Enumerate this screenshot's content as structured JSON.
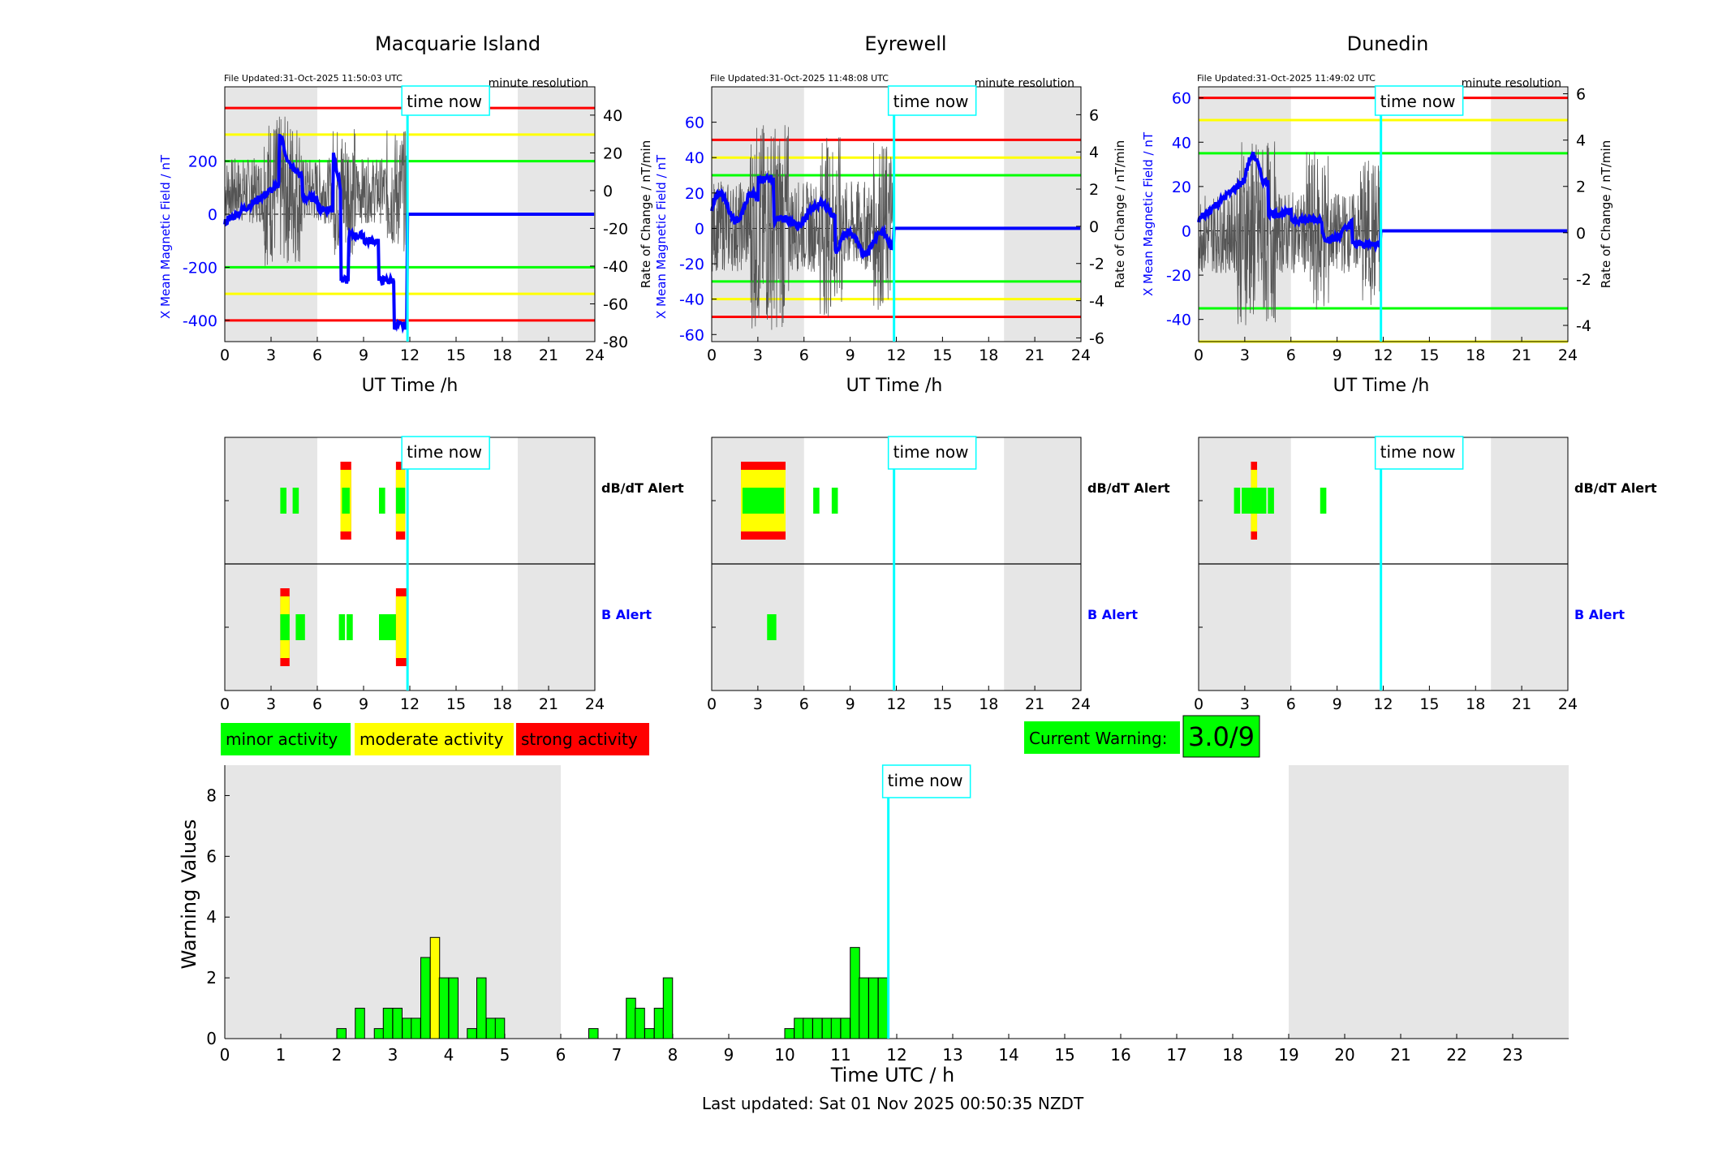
{
  "stations": [
    {
      "name": "Macquarie Island",
      "file_updated": "File Updated:31-Oct-2025 11:50:03 UTC",
      "resolution": "minute resolution",
      "left_ylabel": "X Mean Magnetic Field / nT",
      "right_ylabel": "Rate of Change / nT/min",
      "xlabel": "UT Time /h",
      "left_ticks": [
        -400,
        -200,
        0,
        200
      ],
      "right_ticks": [
        -80,
        -60,
        -40,
        -20,
        0,
        20,
        40
      ],
      "thresholds": {
        "red": 400,
        "yellow": 300,
        "green": 200
      }
    },
    {
      "name": "Eyrewell",
      "file_updated": "File Updated:31-Oct-2025 11:48:08 UTC",
      "resolution": "minute resolution",
      "left_ylabel": "X Mean Magnetic Field / nT",
      "right_ylabel": "Rate of Change / nT/min",
      "xlabel": "UT Time /h",
      "left_ticks": [
        -60,
        -40,
        -20,
        0,
        20,
        40,
        60
      ],
      "right_ticks": [
        -6,
        -4,
        -2,
        0,
        2,
        4,
        6
      ],
      "thresholds": {
        "red": 50,
        "yellow": 40,
        "green": 30
      }
    },
    {
      "name": "Dunedin",
      "file_updated": "File Updated:31-Oct-2025 11:49:02 UTC",
      "resolution": "minute resolution",
      "left_ylabel": "X Mean Magnetic Field / nT",
      "right_ylabel": "Rate of Change / nT/min",
      "xlabel": "UT Time /h",
      "left_ticks": [
        -40,
        -20,
        0,
        20,
        40,
        60
      ],
      "right_ticks": [
        -4,
        -2,
        0,
        2,
        4,
        6
      ],
      "thresholds": {
        "red": 60,
        "yellow": 50,
        "green": 35
      }
    }
  ],
  "time_now_label": "time now",
  "time_now_hours": 11.85,
  "night_shading_hours": [
    [
      0,
      6
    ],
    [
      19,
      24
    ]
  ],
  "x_ticks": [
    0,
    3,
    6,
    9,
    12,
    15,
    18,
    21,
    24
  ],
  "alert_labels": {
    "dbdt": "dB/dT Alert",
    "b": "B Alert"
  },
  "alerts": [
    {
      "dbdt": [
        [
          3.6,
          4.0,
          "g"
        ],
        [
          4.4,
          4.8,
          "g"
        ],
        [
          7.5,
          8.2,
          "o"
        ],
        [
          7.6,
          8.1,
          "g"
        ],
        [
          10.0,
          10.4,
          "g"
        ],
        [
          11.1,
          11.7,
          "o"
        ],
        [
          11.1,
          11.7,
          "g"
        ]
      ],
      "b": [
        [
          3.6,
          4.2,
          "o"
        ],
        [
          3.6,
          4.2,
          "g"
        ],
        [
          4.6,
          5.2,
          "g"
        ],
        [
          7.4,
          7.8,
          "g"
        ],
        [
          7.9,
          8.3,
          "g"
        ],
        [
          10.0,
          11.9,
          "g"
        ],
        [
          11.1,
          11.9,
          "o"
        ]
      ]
    },
    {
      "dbdt": [
        [
          1.9,
          4.8,
          "o"
        ],
        [
          2.0,
          4.7,
          "g"
        ],
        [
          6.6,
          7.0,
          "g"
        ],
        [
          7.8,
          8.2,
          "g"
        ]
      ],
      "b": [
        [
          3.6,
          4.2,
          "g"
        ]
      ]
    },
    {
      "dbdt": [
        [
          2.3,
          2.7,
          "g"
        ],
        [
          2.8,
          3.5,
          "g"
        ],
        [
          3.4,
          3.8,
          "o"
        ],
        [
          3.4,
          4.4,
          "g"
        ],
        [
          4.5,
          4.9,
          "g"
        ],
        [
          7.9,
          8.3,
          "g"
        ]
      ],
      "b": []
    }
  ],
  "legend": {
    "minor": "minor activity",
    "moderate": "moderate activity",
    "strong": "strong activity",
    "minor_color": "#00ff00",
    "moderate_color": "#ffff00",
    "strong_color": "#ff0000"
  },
  "current_warning": {
    "label": "Current Warning:",
    "value": "3.0/9"
  },
  "colors": {
    "field": "#0000ff",
    "time_now": "#00ffff",
    "night": "#e6e6e6",
    "rate": "#555555"
  },
  "chart_data": {
    "type": "bar",
    "title": "",
    "xlabel": "Time UTC / h",
    "ylabel": "Warning Values",
    "xlim": [
      0,
      24
    ],
    "ylim": [
      0,
      9
    ],
    "x_ticks": [
      0,
      1,
      2,
      3,
      4,
      5,
      6,
      7,
      8,
      9,
      10,
      11,
      12,
      13,
      14,
      15,
      16,
      17,
      18,
      19,
      20,
      21,
      22,
      23
    ],
    "y_ticks": [
      0,
      2,
      4,
      6,
      8
    ],
    "bar_width_hours": 0.1667,
    "bars": [
      {
        "x": 2.0,
        "value": 0.33,
        "level": "minor"
      },
      {
        "x": 2.33,
        "value": 1.0,
        "level": "minor"
      },
      {
        "x": 2.67,
        "value": 0.33,
        "level": "minor"
      },
      {
        "x": 2.83,
        "value": 1.0,
        "level": "minor"
      },
      {
        "x": 3.0,
        "value": 1.0,
        "level": "minor"
      },
      {
        "x": 3.17,
        "value": 0.67,
        "level": "minor"
      },
      {
        "x": 3.33,
        "value": 0.67,
        "level": "minor"
      },
      {
        "x": 3.5,
        "value": 2.67,
        "level": "minor"
      },
      {
        "x": 3.67,
        "value": 3.33,
        "level": "moderate"
      },
      {
        "x": 3.83,
        "value": 2.0,
        "level": "minor"
      },
      {
        "x": 4.0,
        "value": 2.0,
        "level": "minor"
      },
      {
        "x": 4.33,
        "value": 0.33,
        "level": "minor"
      },
      {
        "x": 4.5,
        "value": 2.0,
        "level": "minor"
      },
      {
        "x": 4.67,
        "value": 0.67,
        "level": "minor"
      },
      {
        "x": 4.83,
        "value": 0.67,
        "level": "minor"
      },
      {
        "x": 6.5,
        "value": 0.33,
        "level": "minor"
      },
      {
        "x": 7.17,
        "value": 1.33,
        "level": "minor"
      },
      {
        "x": 7.33,
        "value": 1.0,
        "level": "minor"
      },
      {
        "x": 7.5,
        "value": 0.33,
        "level": "minor"
      },
      {
        "x": 7.67,
        "value": 1.0,
        "level": "minor"
      },
      {
        "x": 7.83,
        "value": 2.0,
        "level": "minor"
      },
      {
        "x": 10.0,
        "value": 0.33,
        "level": "minor"
      },
      {
        "x": 10.17,
        "value": 0.67,
        "level": "minor"
      },
      {
        "x": 10.33,
        "value": 0.67,
        "level": "minor"
      },
      {
        "x": 10.5,
        "value": 0.67,
        "level": "minor"
      },
      {
        "x": 10.67,
        "value": 0.67,
        "level": "minor"
      },
      {
        "x": 10.83,
        "value": 0.67,
        "level": "minor"
      },
      {
        "x": 11.0,
        "value": 0.67,
        "level": "minor"
      },
      {
        "x": 11.17,
        "value": 3.0,
        "level": "minor"
      },
      {
        "x": 11.33,
        "value": 2.0,
        "level": "minor"
      },
      {
        "x": 11.5,
        "value": 2.0,
        "level": "minor"
      },
      {
        "x": 11.67,
        "value": 2.0,
        "level": "minor"
      }
    ]
  },
  "last_updated": "Last updated: Sat 01 Nov 2025 00:50:35 NZDT"
}
